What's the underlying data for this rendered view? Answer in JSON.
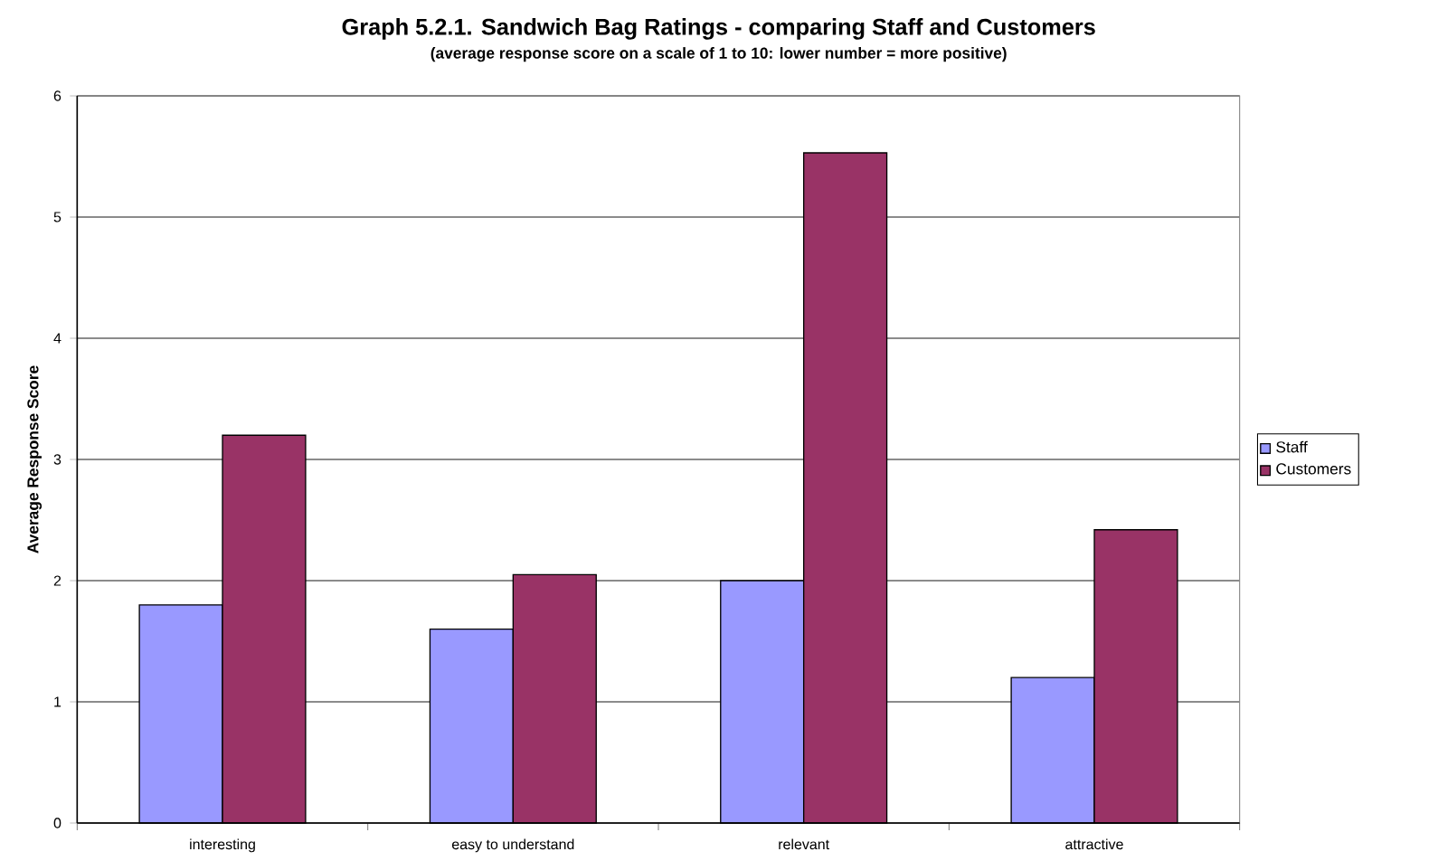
{
  "chart_data": {
    "type": "bar",
    "title": "Graph 5.2.1. Sandwich Bag Ratings - comparing Staff and Customers",
    "subtitle": "(average response score on a scale of 1 to 10: lower number = more positive)",
    "ylabel": "Average Response Score",
    "categories": [
      "interesting",
      "easy to understand",
      "relevant",
      "attractive"
    ],
    "series": [
      {
        "name": "Staff",
        "color": "#9999ff",
        "values": [
          1.8,
          1.6,
          2.0,
          1.2
        ]
      },
      {
        "name": "Customers",
        "color": "#993366",
        "values": [
          3.2,
          2.05,
          5.53,
          2.42
        ]
      }
    ],
    "ylim": [
      0,
      6
    ],
    "yticks": [
      0,
      1,
      2,
      3,
      4,
      5,
      6
    ],
    "grid": "y",
    "legend": "right"
  }
}
